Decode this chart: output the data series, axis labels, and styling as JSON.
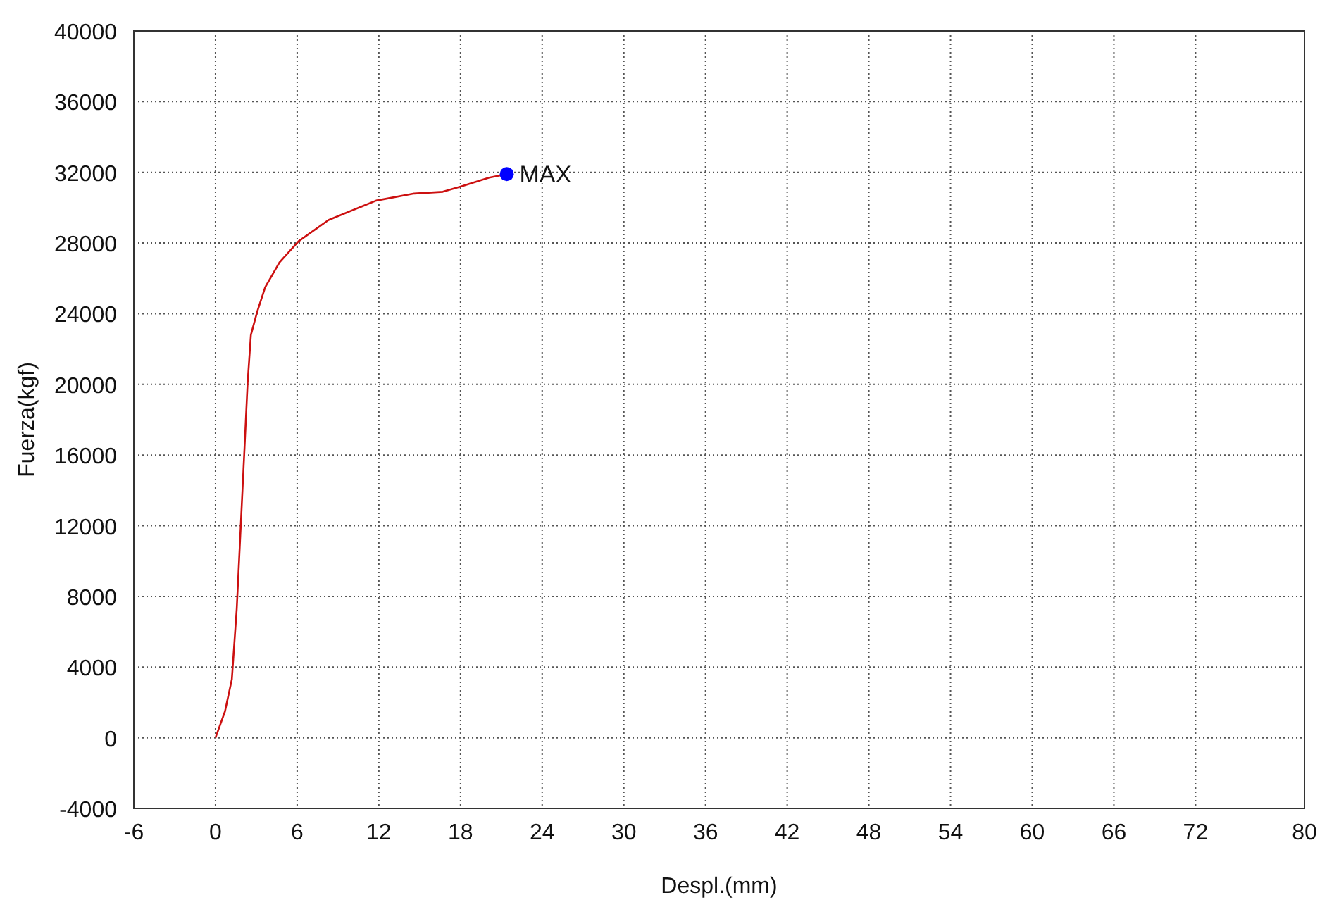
{
  "chart_data": {
    "type": "line",
    "xlabel": "Despl.(mm)",
    "ylabel": "Fuerza(kgf)",
    "xlim": [
      -6,
      80
    ],
    "xticks": [
      -6,
      0,
      6,
      12,
      18,
      24,
      30,
      36,
      42,
      48,
      54,
      60,
      66,
      72,
      80
    ],
    "ylim": [
      -4000,
      40000
    ],
    "yticks": [
      -4000,
      0,
      4000,
      8000,
      12000,
      16000,
      20000,
      24000,
      28000,
      32000,
      36000,
      40000
    ],
    "grid": true,
    "line_style": "solid",
    "marker": "none",
    "series": [
      {
        "color": "#cc1010",
        "x": [
          0,
          0.7,
          1.2,
          1.56,
          1.9,
          2.15,
          2.36,
          2.6,
          3.06,
          3.65,
          4.7,
          6.1,
          8.3,
          11.8,
          14.6,
          16.7,
          18.05,
          20.1,
          21.4
        ],
        "values": [
          0,
          1500,
          3300,
          7300,
          12700,
          16700,
          20100,
          22800,
          24100,
          25500,
          26900,
          28100,
          29300,
          30400,
          30800,
          30900,
          31200,
          31700,
          31900
        ]
      },
      {
        "type": "scatter",
        "color": "#0000ff",
        "marker": "circle",
        "x": [
          21.4
        ],
        "values": [
          31900
        ]
      }
    ],
    "annotations": [
      {
        "text": "MAX",
        "x": 21.4,
        "y": 31900
      }
    ]
  }
}
